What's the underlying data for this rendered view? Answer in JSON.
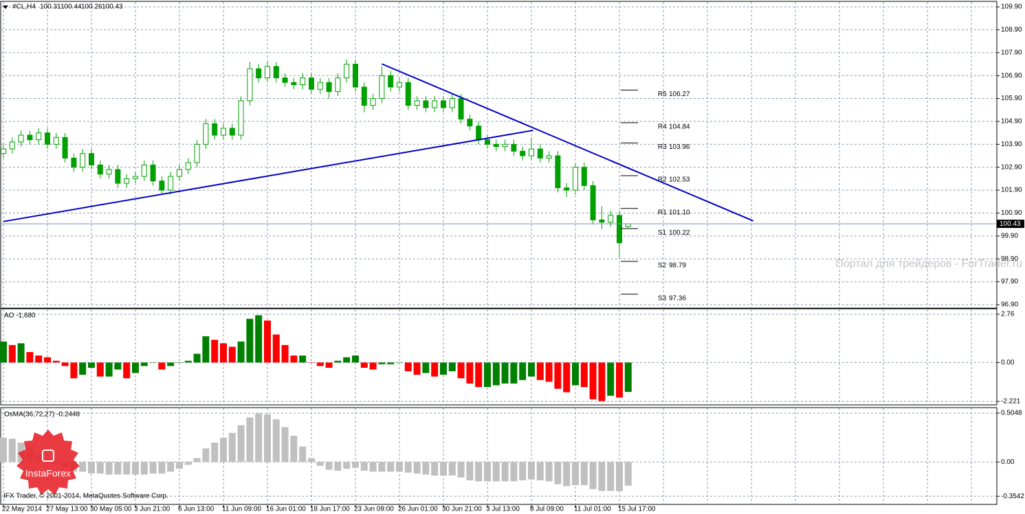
{
  "chart_data": [
    {
      "type": "candlestick",
      "title": "#CL,H4",
      "x": [
        "22 May 2014",
        null,
        null,
        null,
        null,
        "27 May 13:00",
        null,
        null,
        null,
        null,
        "30 May 05:00",
        null,
        null,
        null,
        null,
        "3 Jun 21:00",
        null,
        null,
        null,
        null,
        "6 Jun 13:00",
        null,
        null,
        null,
        null,
        "11 Jun 09:00",
        null,
        null,
        null,
        null,
        "16 Jun 01:00",
        null,
        null,
        null,
        null,
        "18 Jun 17:00",
        null,
        null,
        null,
        null,
        "23 Jun 09:00",
        null,
        null,
        null,
        null,
        "26 Jun 01:00",
        null,
        null,
        null,
        null,
        "30 Jun 21:00",
        null,
        null,
        null,
        null,
        "3 Jul 13:00",
        null,
        null,
        null,
        null,
        "8 Jul 09:00",
        null,
        null,
        null,
        null,
        "11 Jul 01:00",
        null,
        null,
        null,
        null,
        "15 Jul 17:00",
        null
      ],
      "open": [
        103.5,
        103.7,
        104.0,
        104.3,
        104.1,
        104.4,
        103.9,
        104.2,
        103.3,
        102.9,
        103.5,
        103.0,
        102.6,
        102.8,
        102.2,
        102.4,
        102.5,
        103.0,
        102.3,
        101.9,
        102.5,
        102.8,
        103.1,
        103.9,
        104.8,
        104.3,
        104.6,
        104.3,
        105.8,
        107.2,
        106.8,
        107.3,
        106.8,
        106.6,
        106.5,
        106.8,
        106.3,
        106.6,
        106.2,
        106.8,
        107.4,
        106.4,
        105.6,
        105.9,
        106.9,
        106.4,
        106.6,
        105.6,
        105.8,
        105.5,
        105.8,
        105.5,
        105.9,
        105.0,
        104.7,
        104.1,
        103.9,
        103.8,
        103.9,
        103.6,
        103.4,
        103.7,
        103.3,
        103.4,
        102.0,
        101.9,
        102.9,
        102.1,
        100.6,
        100.5,
        100.8,
        100.31
      ],
      "high": [
        103.9,
        104.2,
        104.5,
        104.5,
        104.6,
        104.6,
        104.4,
        104.4,
        103.5,
        103.7,
        103.7,
        103.2,
        103.0,
        103.0,
        102.6,
        102.7,
        103.2,
        103.2,
        102.5,
        102.7,
        103.0,
        103.3,
        104.1,
        105.0,
        105.0,
        104.8,
        104.8,
        106.0,
        107.5,
        107.4,
        107.5,
        107.5,
        107.0,
        106.8,
        107.0,
        107.0,
        106.8,
        106.8,
        107.0,
        107.6,
        107.6,
        106.6,
        106.1,
        107.3,
        107.1,
        106.8,
        106.8,
        106.0,
        106.0,
        106.0,
        106.0,
        106.1,
        106.1,
        105.2,
        104.9,
        104.3,
        104.1,
        104.1,
        104.1,
        103.8,
        104.2,
        103.9,
        103.6,
        103.6,
        102.2,
        103.1,
        103.1,
        102.3,
        101.2,
        101.0,
        101.0,
        100.44
      ],
      "low": [
        103.3,
        103.5,
        103.8,
        103.9,
        103.9,
        103.7,
        103.7,
        103.1,
        102.7,
        102.7,
        102.8,
        102.4,
        102.4,
        102.0,
        102.0,
        102.2,
        102.3,
        102.1,
        101.7,
        101.7,
        102.3,
        102.6,
        102.9,
        103.7,
        104.1,
        104.1,
        104.1,
        104.1,
        105.6,
        106.6,
        106.6,
        106.6,
        106.4,
        106.3,
        106.3,
        106.1,
        106.1,
        105.9,
        106.0,
        106.6,
        106.2,
        105.3,
        105.4,
        105.7,
        106.2,
        106.2,
        105.4,
        105.4,
        105.3,
        105.3,
        105.3,
        105.3,
        104.8,
        104.5,
        103.9,
        103.7,
        103.6,
        103.6,
        103.4,
        103.2,
        103.2,
        103.1,
        103.1,
        101.8,
        101.6,
        101.7,
        101.9,
        100.4,
        100.2,
        100.3,
        98.95,
        100.26
      ],
      "close": [
        103.7,
        104.0,
        104.3,
        104.1,
        104.4,
        103.9,
        104.2,
        103.3,
        102.9,
        103.5,
        103.0,
        102.6,
        102.8,
        102.2,
        102.4,
        102.5,
        103.0,
        102.3,
        101.9,
        102.5,
        102.8,
        103.1,
        103.9,
        104.8,
        104.3,
        104.6,
        104.3,
        105.8,
        107.2,
        106.8,
        107.3,
        106.8,
        106.6,
        106.5,
        106.8,
        106.3,
        106.6,
        106.2,
        106.8,
        107.4,
        106.4,
        105.6,
        105.9,
        106.9,
        106.4,
        106.6,
        105.6,
        105.8,
        105.5,
        105.8,
        105.5,
        105.9,
        105.0,
        104.7,
        104.1,
        103.9,
        103.8,
        103.9,
        103.6,
        103.4,
        103.7,
        103.3,
        103.4,
        102.0,
        101.9,
        102.9,
        102.1,
        100.6,
        100.5,
        100.8,
        99.6,
        100.43
      ],
      "wick_color": "#00a000",
      "up_fill": "#ffffff",
      "down_fill": "#00a000",
      "ylim": [
        96.75,
        110.11
      ],
      "yticks": [
        {
          "value": 96.9,
          "label": "96.90"
        },
        {
          "value": 97.9,
          "label": "97.90"
        },
        {
          "value": 98.9,
          "label": "98.90"
        },
        {
          "value": 99.9,
          "label": "99.90"
        },
        {
          "value": 100.9,
          "label": "100.90"
        },
        {
          "value": 101.9,
          "label": "101.90"
        },
        {
          "value": 102.9,
          "label": "102.90"
        },
        {
          "value": 103.9,
          "label": "103.90"
        },
        {
          "value": 104.9,
          "label": "104.90"
        },
        {
          "value": 105.9,
          "label": "105.90"
        },
        {
          "value": 106.9,
          "label": "106.90"
        },
        {
          "value": 107.9,
          "label": "107.90"
        },
        {
          "value": 108.9,
          "label": "108.90"
        },
        {
          "value": 109.9,
          "label": "109.90"
        }
      ],
      "grid": true,
      "price_line_color": "#7b8fc0",
      "pivots": {
        "names": [
          "R5",
          "R4",
          "R3",
          "R2",
          "R1",
          "S1",
          "S2",
          "S3"
        ],
        "values": [
          106.27,
          104.84,
          103.96,
          102.53,
          101.1,
          100.22,
          98.79,
          97.36
        ],
        "value_labels": [
          "106.27",
          "104.84",
          "103.96",
          "102.53",
          "101.10",
          "100.22",
          "98.79",
          "97.36"
        ]
      },
      "trendline_color": "#0000c8",
      "trendlines": [
        {
          "x": [
            0,
            60.2
          ],
          "y": [
            100.53,
            104.51
          ]
        },
        {
          "x": [
            43,
            85.2
          ],
          "y": [
            107.41,
            100.56
          ]
        }
      ]
    },
    {
      "type": "bar",
      "title": "AO -1,680",
      "values": [
        1.2,
        1.0,
        1.1,
        0.6,
        0.4,
        0.3,
        0.1,
        -0.2,
        -0.9,
        -0.7,
        -0.3,
        -0.8,
        -0.8,
        -0.4,
        -0.9,
        -0.6,
        -0.2,
        0.0,
        -0.4,
        -0.2,
        0.0,
        0.1,
        0.5,
        1.5,
        1.3,
        1.1,
        0.9,
        1.2,
        2.5,
        2.7,
        2.4,
        1.6,
        1.0,
        0.4,
        0.4,
        0.0,
        -0.2,
        -0.3,
        0.1,
        0.3,
        0.4,
        -0.3,
        -0.4,
        -0.1,
        -0.1,
        0.0,
        -0.5,
        -0.7,
        -0.6,
        -0.8,
        -0.7,
        -0.5,
        -0.9,
        -1.2,
        -1.4,
        -1.4,
        -1.3,
        -1.2,
        -1.2,
        -1.0,
        -0.8,
        -1.0,
        -1.1,
        -1.5,
        -1.7,
        -1.3,
        -1.4,
        -2.1,
        -2.2,
        -1.9,
        -2.0,
        -1.68
      ],
      "up_color": "#008000",
      "down_color": "#ff0000",
      "ylim": [
        -2.42,
        3.03
      ],
      "yticks": [
        2.76,
        {
          "value": 0,
          "label": "0.00"
        },
        -2.221
      ],
      "grid": true
    },
    {
      "type": "bar",
      "title": "OsMA(36,72,27) -0.2448",
      "values": [
        0.25,
        0.24,
        0.2,
        0.15,
        0.08,
        0.02,
        -0.02,
        -0.06,
        -0.1,
        -0.1,
        -0.12,
        -0.12,
        -0.13,
        -0.13,
        -0.13,
        -0.13,
        -0.13,
        -0.12,
        -0.12,
        -0.1,
        -0.07,
        -0.03,
        0.04,
        0.14,
        0.2,
        0.25,
        0.3,
        0.38,
        0.46,
        0.5,
        0.49,
        0.44,
        0.36,
        0.27,
        0.16,
        0.04,
        -0.04,
        -0.08,
        -0.09,
        -0.07,
        -0.06,
        -0.09,
        -0.1,
        -0.1,
        -0.1,
        -0.1,
        -0.11,
        -0.12,
        -0.13,
        -0.14,
        -0.14,
        -0.14,
        -0.16,
        -0.19,
        -0.2,
        -0.2,
        -0.2,
        -0.2,
        -0.2,
        -0.19,
        -0.18,
        -0.19,
        -0.2,
        -0.23,
        -0.25,
        -0.24,
        -0.24,
        -0.28,
        -0.3,
        -0.3,
        -0.3,
        -0.2448
      ],
      "color": "#c0c0c0",
      "ylim": [
        -0.438,
        0.554
      ],
      "yticks": [
        0.5048,
        {
          "value": 0,
          "label": "0.00"
        },
        -0.3542
      ],
      "grid": true
    }
  ],
  "watermark": "Портал для трейдеров - ForTrader.ru",
  "footer": "IFX Trader, © 2001-2014, MetaQuotes Software Corp.",
  "logo": "InstaForex"
}
